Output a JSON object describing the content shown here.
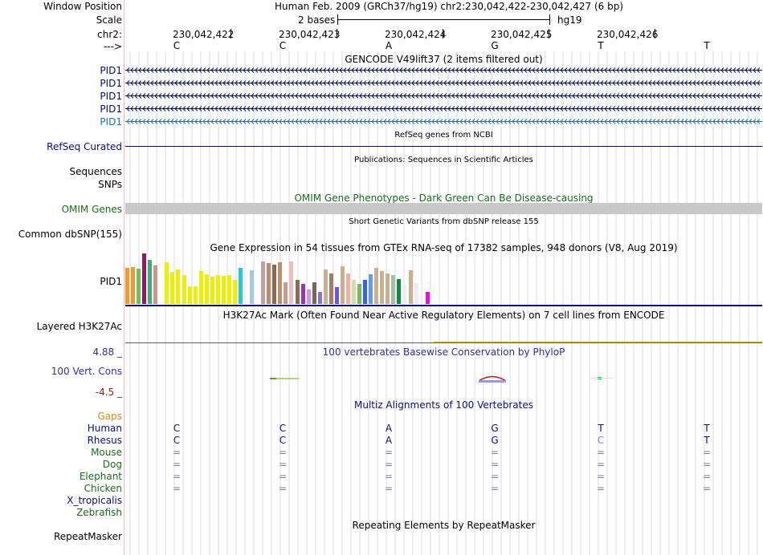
{
  "header": {
    "window_position_label": "Window Position",
    "window_position_value": "Human Feb. 2009 (GRCh37/hg19)   chr2:230,042,422-230,042,427 (6 bp)",
    "scale_label": "Scale",
    "scale_value": "2 bases",
    "scale_assembly": "hg19",
    "chrom_label": "chr2:",
    "strand_label": "--->",
    "coordinates": [
      "230,042,422",
      "230,042,423",
      "230,042,424",
      "230,042,425",
      "230,042,426"
    ],
    "bases": [
      "C",
      "C",
      "A",
      "G",
      "T",
      "T"
    ]
  },
  "tracks": {
    "gencode": {
      "title": "GENCODE V49lift37 (2 items filtered out)",
      "items": [
        "PID1",
        "PID1",
        "PID1",
        "PID1",
        "PID1"
      ],
      "colors": [
        "#0c0c78",
        "#0c0c78",
        "#0c0c78",
        "#0c0c78",
        "#0c7ca8"
      ]
    },
    "refseq": {
      "title": "RefSeq genes from NCBI",
      "label": "RefSeq Curated"
    },
    "publications": {
      "title": "Publications: Sequences in Scientific Articles",
      "label1": "Sequences",
      "label2": "SNPs"
    },
    "omim": {
      "title": "OMIM Gene Phenotypes - Dark Green Can Be Disease-causing",
      "label": "OMIM Genes"
    },
    "dbsnp": {
      "title": "Short Genetic Variants from dbSNP release 155",
      "label": "Common dbSNP(155)"
    },
    "gtex": {
      "title": "Gene Expression in 54 tissues from GTEx RNA-seq of 17382 samples, 948 donors (V8, Aug 2019)",
      "label": "PID1"
    },
    "h3k27ac": {
      "title": "H3K27Ac Mark (Often Found Near Active Regulatory Elements) on 7 cell lines from ENCODE",
      "label": "Layered H3K27Ac"
    },
    "phylop": {
      "title": "100 vertebrates Basewise Conservation by PhyloP",
      "label": "100 Vert. Cons",
      "max": "4.88 _",
      "min": "-4.5 _"
    },
    "multiz": {
      "title": "Multiz Alignments of 100 Vertebrates",
      "gaps_label": "Gaps",
      "species": [
        {
          "name": "Human",
          "color": "#0c0c78",
          "bases": [
            "C",
            "C",
            "A",
            "G",
            "T",
            "T"
          ]
        },
        {
          "name": "Rhesus",
          "color": "#0c0c78",
          "bases": [
            "C",
            "C",
            "A",
            "G",
            "C",
            "T"
          ]
        },
        {
          "name": "Mouse",
          "color": "#1a6b1a",
          "bases": [
            "=",
            "=",
            "=",
            "=",
            "=",
            "="
          ]
        },
        {
          "name": "Dog",
          "color": "#1a6b1a",
          "bases": [
            "=",
            "=",
            "=",
            "=",
            "=",
            "="
          ]
        },
        {
          "name": "Elephant",
          "color": "#1a6b1a",
          "bases": [
            "=",
            "=",
            "=",
            "=",
            "=",
            "="
          ]
        },
        {
          "name": "Chicken",
          "color": "#1a6b1a",
          "bases": [
            "=",
            "=",
            "=",
            "=",
            "=",
            "="
          ]
        },
        {
          "name": "X_tropicalis",
          "color": "#0c0c78",
          "bases": [
            "",
            "",
            "",
            "",
            "",
            ""
          ]
        },
        {
          "name": "Zebrafish",
          "color": "#1a6b1a",
          "bases": [
            "",
            "",
            "",
            "",
            "",
            ""
          ]
        }
      ]
    },
    "repeatmasker": {
      "title": "Repeating Elements by RepeatMasker",
      "label": "RepeatMasker"
    }
  },
  "chart_data": {
    "type": "bar",
    "title": "Gene Expression in 54 tissues from GTEx RNA-seq of 17382 samples, 948 donors (V8, Aug 2019)",
    "xlabel": "",
    "ylabel": "",
    "ylim": [
      0,
      63
    ],
    "values": [
      45,
      46,
      44,
      63,
      55,
      48,
      0,
      52,
      40,
      43,
      36,
      22,
      22,
      41,
      37,
      34,
      36,
      35,
      36,
      30,
      45,
      0,
      42,
      0,
      53,
      51,
      49,
      52,
      27,
      53,
      30,
      25,
      18,
      27,
      15,
      43,
      38,
      21,
      47,
      38,
      30,
      25,
      30,
      37,
      45,
      41,
      38,
      36,
      31,
      24,
      42,
      26,
      0,
      15
    ],
    "colors": [
      "#ee9a30",
      "#ee9a30",
      "#77bb55",
      "#8b1c62",
      "#44aa77",
      "#c79a85",
      "#ffffff",
      "#eeee00",
      "#eeee00",
      "#eeee00",
      "#eeee00",
      "#eeee00",
      "#eeee00",
      "#eeee00",
      "#eeee00",
      "#eeee00",
      "#eeee00",
      "#eeee00",
      "#eeee00",
      "#eeee00",
      "#22cccc",
      "#ffffff",
      "#a6c8e0",
      "#ffffff",
      "#c0a0a0",
      "#b89070",
      "#8c6a50",
      "#b89070",
      "#c79a85",
      "#e8c0c0",
      "#8c6a50",
      "#9933bb",
      "#cc99ee",
      "#776655",
      "#8877cc",
      "#c8b090",
      "#a08060",
      "#6655ee",
      "#c8b090",
      "#f0b0a0",
      "#d0e0a8",
      "#77bb55",
      "#3366dd",
      "#6699ee",
      "#c8b090",
      "#c8b090",
      "#c8b090",
      "#aabbaa",
      "#118844",
      "#eeeeee",
      "#c8b090",
      "#eeeeee",
      "#ffffff",
      "#ee11cc"
    ]
  }
}
